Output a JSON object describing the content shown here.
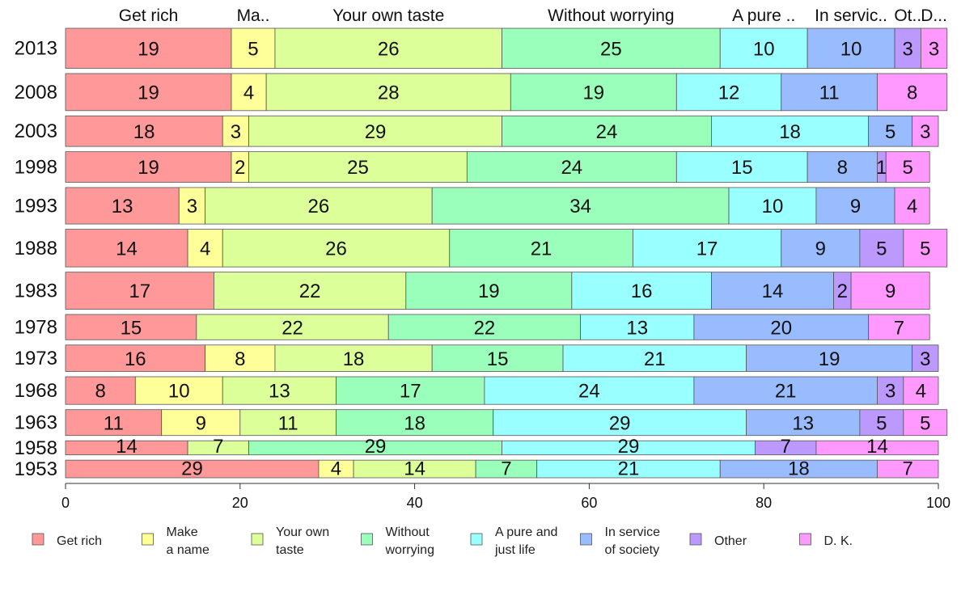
{
  "chart_data": {
    "type": "bar",
    "orientation": "horizontal",
    "stacked": true,
    "title": "",
    "xlabel": "",
    "ylabel": "",
    "xlim": [
      0,
      100
    ],
    "x_ticks": [
      0,
      20,
      40,
      60,
      80,
      100
    ],
    "grid": false,
    "legend_position": "bottom",
    "top_labels": [
      "Get rich",
      "Ma..",
      "Your own taste",
      "Without worrying",
      "A pure ..",
      "In servic..",
      "Ot..",
      "D..."
    ],
    "categories": [
      "2013",
      "2008",
      "2003",
      "1998",
      "1993",
      "1988",
      "1983",
      "1978",
      "1973",
      "1968",
      "1963",
      "1958",
      "1953"
    ],
    "row_weights": [
      6.8,
      6.3,
      5.2,
      5.2,
      6.2,
      6.4,
      6.3,
      4.3,
      4.5,
      4.7,
      4.4,
      2.4,
      3.0
    ],
    "series": [
      {
        "name": "Get rich",
        "legend": [
          "Get rich"
        ],
        "color": "#ff9999",
        "values": [
          19,
          19,
          18,
          19,
          13,
          14,
          17,
          15,
          16,
          8,
          11,
          14,
          29
        ]
      },
      {
        "name": "Make a name",
        "legend": [
          "Make",
          "a name"
        ],
        "color": "#ffff99",
        "values": [
          5,
          4,
          3,
          2,
          3,
          4,
          0,
          0,
          8,
          10,
          9,
          0,
          4
        ]
      },
      {
        "name": "Your own taste",
        "legend": [
          "Your own",
          "taste"
        ],
        "color": "#ddff99",
        "values": [
          26,
          28,
          29,
          25,
          26,
          26,
          22,
          22,
          18,
          13,
          11,
          7,
          14
        ]
      },
      {
        "name": "Without worrying",
        "legend": [
          "Without",
          "worrying"
        ],
        "color": "#99ffbb",
        "values": [
          25,
          19,
          24,
          24,
          34,
          21,
          19,
          22,
          15,
          17,
          18,
          29,
          7
        ]
      },
      {
        "name": "A pure and just life",
        "legend": [
          "A pure and",
          "just life"
        ],
        "color": "#99ffff",
        "values": [
          10,
          12,
          18,
          15,
          10,
          17,
          16,
          13,
          21,
          24,
          29,
          29,
          21
        ]
      },
      {
        "name": "In service of society",
        "legend": [
          "In service",
          "of society"
        ],
        "color": "#99bbff",
        "values": [
          10,
          11,
          5,
          8,
          9,
          9,
          14,
          20,
          19,
          21,
          13,
          0,
          18
        ]
      },
      {
        "name": "Other",
        "legend": [
          "Other"
        ],
        "color": "#bb99ff",
        "values": [
          3,
          0,
          0,
          1,
          0,
          5,
          2,
          0,
          3,
          3,
          5,
          7,
          0
        ]
      },
      {
        "name": "D. K.",
        "legend": [
          "D. K."
        ],
        "color": "#ff99ff",
        "values": [
          3,
          8,
          3,
          5,
          4,
          5,
          9,
          7,
          0,
          4,
          5,
          14,
          7
        ]
      }
    ]
  }
}
